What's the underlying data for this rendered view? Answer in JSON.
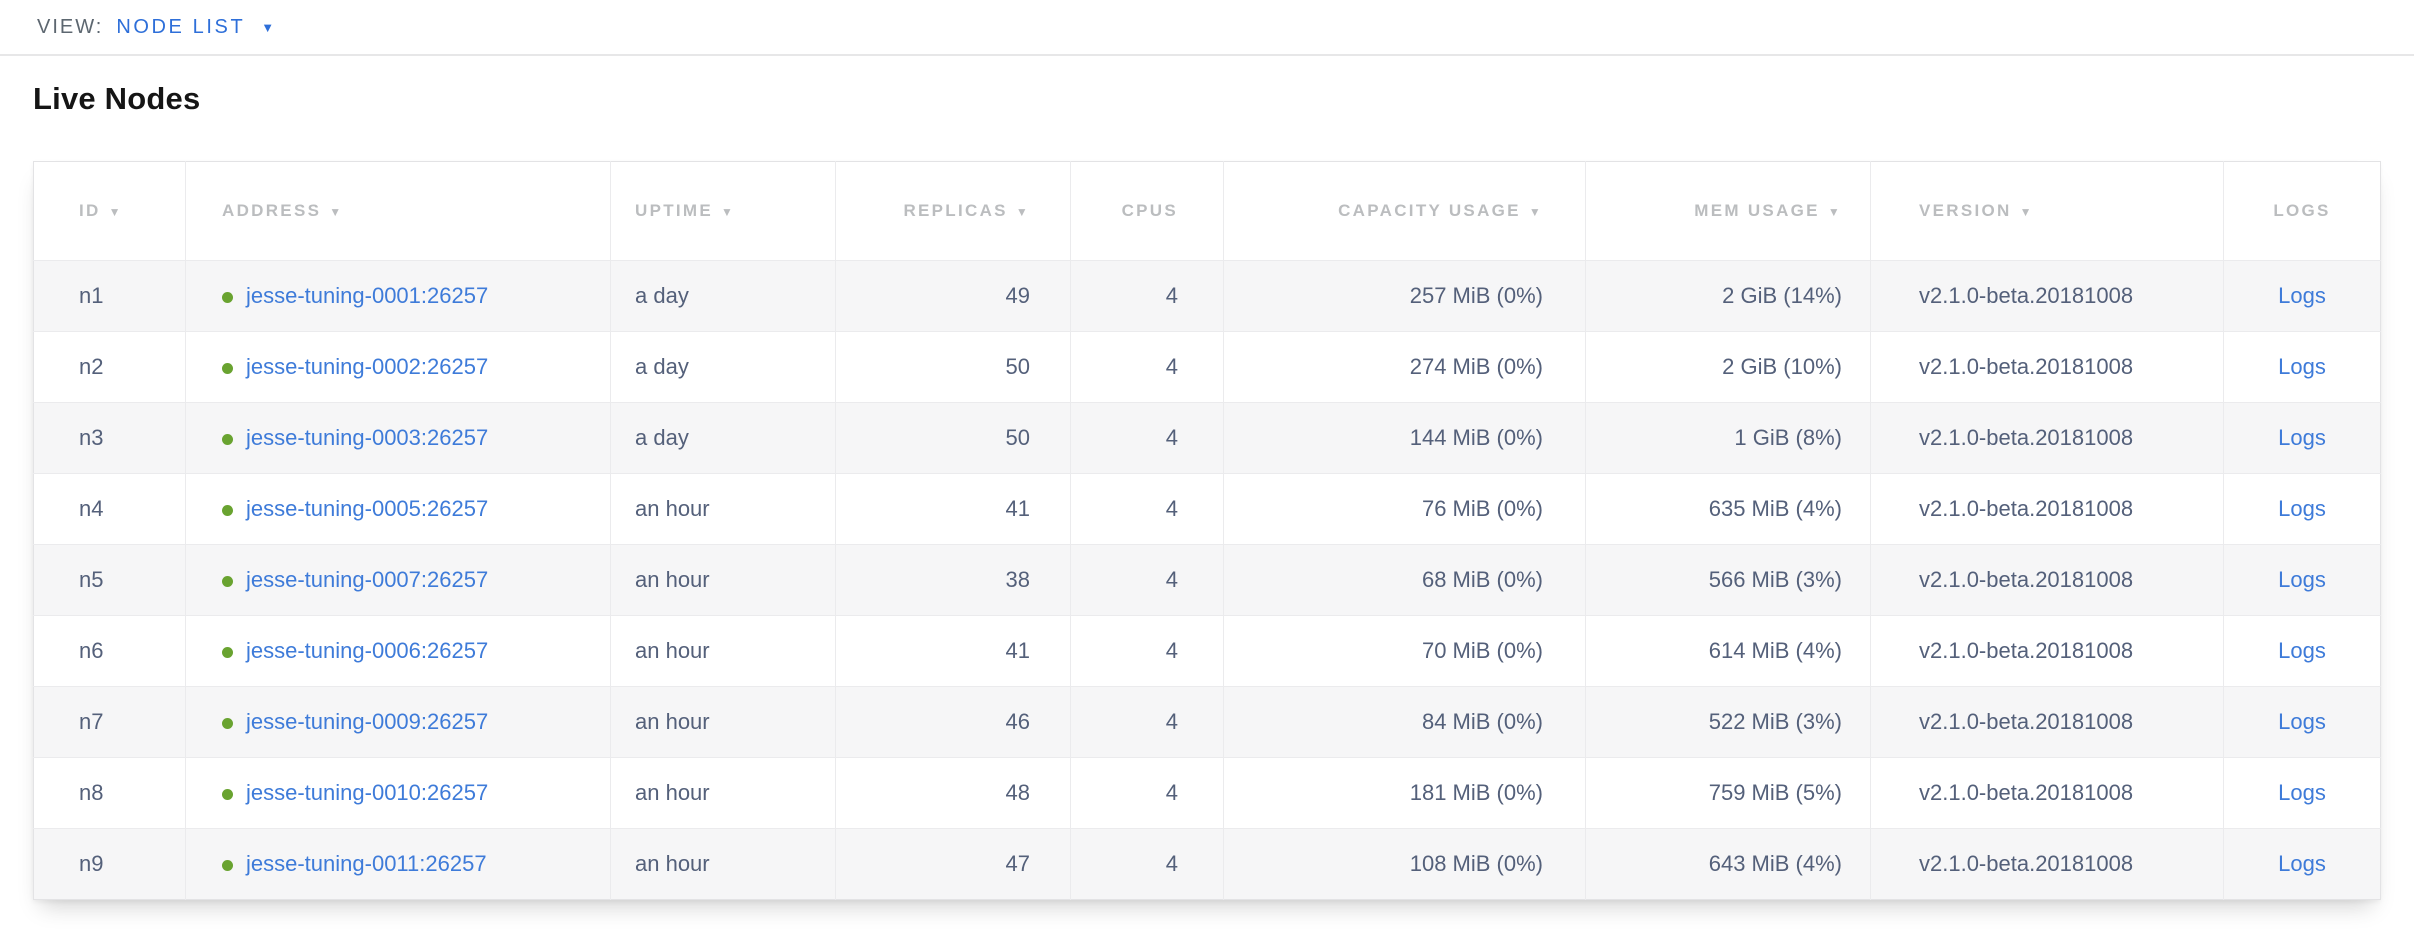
{
  "view_bar": {
    "label": "VIEW:",
    "selected_view": "NODE LIST",
    "caret_icon": "▼"
  },
  "page": {
    "title": "Live Nodes"
  },
  "table": {
    "sort_indicator": "▼",
    "columns": [
      {
        "key": "id",
        "label": "ID",
        "sorted": true,
        "align": "left"
      },
      {
        "key": "address",
        "label": "ADDRESS",
        "sorted": true,
        "align": "left"
      },
      {
        "key": "uptime",
        "label": "UPTIME",
        "sorted": true,
        "align": "left"
      },
      {
        "key": "replicas",
        "label": "REPLICAS",
        "sorted": true,
        "align": "right"
      },
      {
        "key": "cpus",
        "label": "CPUS",
        "sorted": false,
        "align": "right"
      },
      {
        "key": "capacity",
        "label": "CAPACITY USAGE",
        "sorted": true,
        "align": "right"
      },
      {
        "key": "mem",
        "label": "MEM USAGE",
        "sorted": true,
        "align": "right"
      },
      {
        "key": "version",
        "label": "VERSION",
        "sorted": true,
        "align": "left"
      },
      {
        "key": "logs",
        "label": "LOGS",
        "sorted": false,
        "align": "center"
      }
    ],
    "rows": [
      {
        "id": "n1",
        "status": "healthy",
        "address": "jesse-tuning-0001:26257",
        "uptime": "a day",
        "replicas": 49,
        "cpus": 4,
        "capacity": "257 MiB (0%)",
        "mem": "2 GiB (14%)",
        "version": "v2.1.0-beta.20181008",
        "logs": "Logs"
      },
      {
        "id": "n2",
        "status": "healthy",
        "address": "jesse-tuning-0002:26257",
        "uptime": "a day",
        "replicas": 50,
        "cpus": 4,
        "capacity": "274 MiB (0%)",
        "mem": "2 GiB (10%)",
        "version": "v2.1.0-beta.20181008",
        "logs": "Logs"
      },
      {
        "id": "n3",
        "status": "healthy",
        "address": "jesse-tuning-0003:26257",
        "uptime": "a day",
        "replicas": 50,
        "cpus": 4,
        "capacity": "144 MiB (0%)",
        "mem": "1 GiB (8%)",
        "version": "v2.1.0-beta.20181008",
        "logs": "Logs"
      },
      {
        "id": "n4",
        "status": "healthy",
        "address": "jesse-tuning-0005:26257",
        "uptime": "an hour",
        "replicas": 41,
        "cpus": 4,
        "capacity": "76 MiB (0%)",
        "mem": "635 MiB (4%)",
        "version": "v2.1.0-beta.20181008",
        "logs": "Logs"
      },
      {
        "id": "n5",
        "status": "healthy",
        "address": "jesse-tuning-0007:26257",
        "uptime": "an hour",
        "replicas": 38,
        "cpus": 4,
        "capacity": "68 MiB (0%)",
        "mem": "566 MiB (3%)",
        "version": "v2.1.0-beta.20181008",
        "logs": "Logs"
      },
      {
        "id": "n6",
        "status": "healthy",
        "address": "jesse-tuning-0006:26257",
        "uptime": "an hour",
        "replicas": 41,
        "cpus": 4,
        "capacity": "70 MiB (0%)",
        "mem": "614 MiB (4%)",
        "version": "v2.1.0-beta.20181008",
        "logs": "Logs"
      },
      {
        "id": "n7",
        "status": "healthy",
        "address": "jesse-tuning-0009:26257",
        "uptime": "an hour",
        "replicas": 46,
        "cpus": 4,
        "capacity": "84 MiB (0%)",
        "mem": "522 MiB (3%)",
        "version": "v2.1.0-beta.20181008",
        "logs": "Logs"
      },
      {
        "id": "n8",
        "status": "healthy",
        "address": "jesse-tuning-0010:26257",
        "uptime": "an hour",
        "replicas": 48,
        "cpus": 4,
        "capacity": "181 MiB (0%)",
        "mem": "759 MiB (5%)",
        "version": "v2.1.0-beta.20181008",
        "logs": "Logs"
      },
      {
        "id": "n9",
        "status": "healthy",
        "address": "jesse-tuning-0011:26257",
        "uptime": "an hour",
        "replicas": 47,
        "cpus": 4,
        "capacity": "108 MiB (0%)",
        "mem": "643 MiB (4%)",
        "version": "v2.1.0-beta.20181008",
        "logs": "Logs"
      }
    ]
  },
  "colors": {
    "accent_blue": "#2e6fd9",
    "link_blue": "#3e7bd9",
    "healthy_green": "#69a330",
    "header_text": "#bbbdbf",
    "body_text": "#54607a",
    "row_stripe": "#f6f6f7",
    "grid_border": "#ebebed"
  }
}
